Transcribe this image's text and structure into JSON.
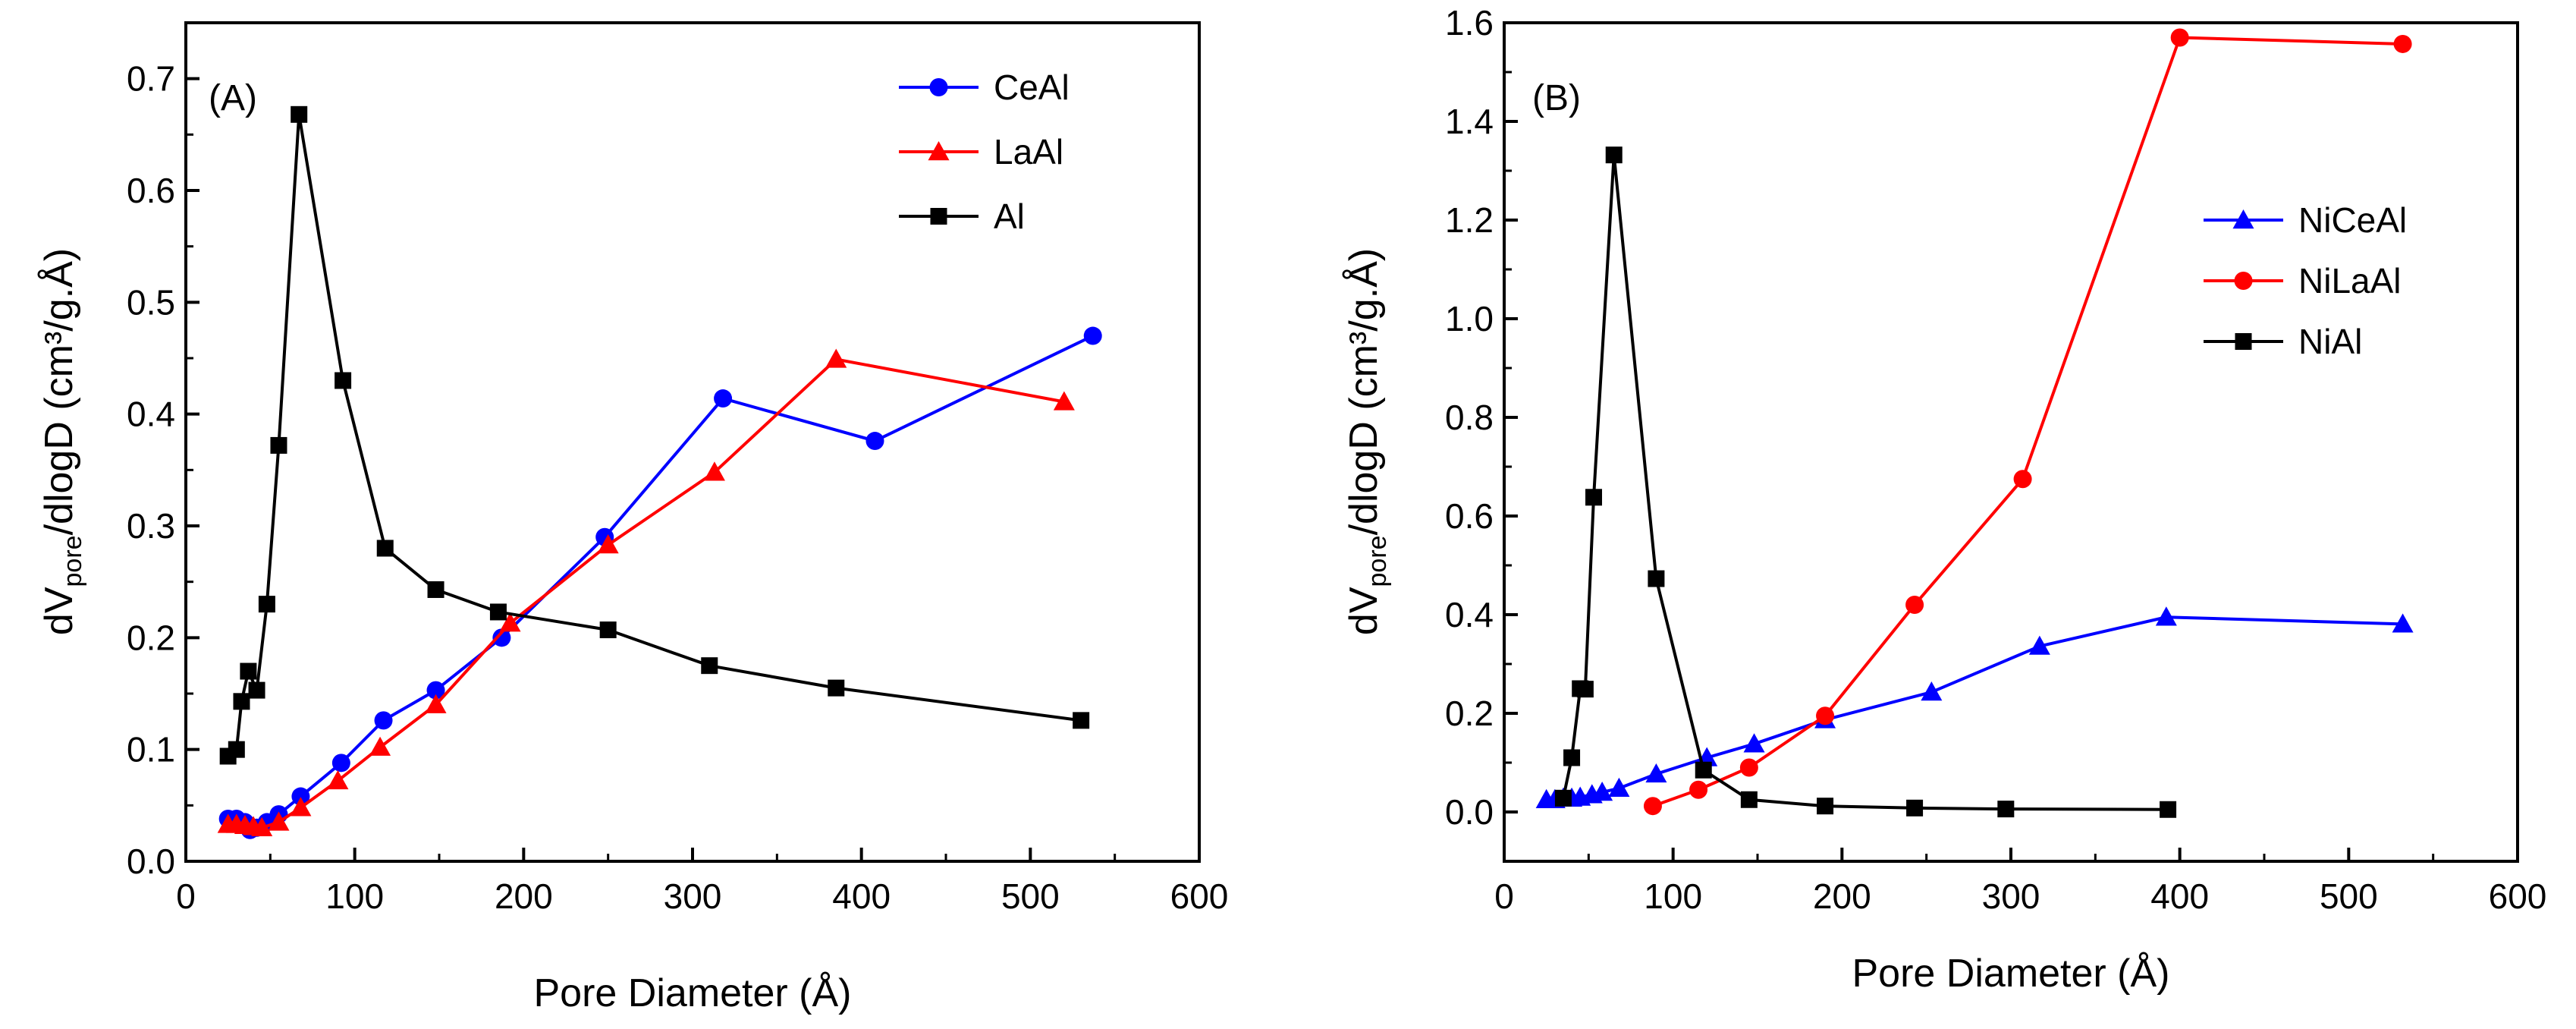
{
  "chart_data": [
    {
      "id": "A",
      "type": "line",
      "panel_label": "(A)",
      "xlabel": "Pore Diameter (Å)",
      "ylabel_main": "dV",
      "ylabel_sub": "pore",
      "ylabel_rest": "/dlogD (cm³/g.Å)",
      "xlim": [
        0,
        600
      ],
      "ylim": [
        0,
        0.75
      ],
      "xticks": [
        "0",
        "100",
        "200",
        "300",
        "400",
        "500",
        "600"
      ],
      "yticks": [
        "0.0",
        "0.1",
        "0.2",
        "0.3",
        "0.4",
        "0.5",
        "0.6",
        "0.7"
      ],
      "legend": "top-right",
      "series": [
        {
          "name": "CeAl",
          "color": "#0000ff",
          "marker": "circle",
          "x": [
            25,
            30,
            35,
            38,
            42,
            48,
            55,
            68,
            92,
            117,
            148,
            187,
            248,
            318,
            408,
            537
          ],
          "y": [
            0.038,
            0.038,
            0.035,
            0.028,
            0.03,
            0.035,
            0.042,
            0.058,
            0.088,
            0.126,
            0.153,
            0.2,
            0.29,
            0.414,
            0.376,
            0.47
          ]
        },
        {
          "name": "LaAl",
          "color": "#ff0000",
          "marker": "triangle",
          "x": [
            25,
            30,
            35,
            40,
            45,
            55,
            68,
            90,
            115,
            148,
            192,
            250,
            313,
            385,
            520
          ],
          "y": [
            0.033,
            0.033,
            0.032,
            0.031,
            0.03,
            0.035,
            0.048,
            0.072,
            0.102,
            0.14,
            0.213,
            0.283,
            0.348,
            0.449,
            0.411
          ]
        },
        {
          "name": "Al",
          "color": "#000000",
          "marker": "square",
          "x": [
            25,
            30,
            33,
            37,
            42,
            48,
            55,
            67,
            93,
            118,
            148,
            185,
            250,
            310,
            385,
            530
          ],
          "y": [
            0.094,
            0.1,
            0.143,
            0.17,
            0.153,
            0.23,
            0.372,
            0.668,
            0.43,
            0.28,
            0.243,
            0.223,
            0.207,
            0.175,
            0.155,
            0.126
          ]
        }
      ]
    },
    {
      "id": "B",
      "type": "line",
      "panel_label": "(B)",
      "xlabel": "Pore Diameter (Å)",
      "ylabel_main": "dV",
      "ylabel_sub": "pore",
      "ylabel_rest": "/dlogD (cm³/g.Å)",
      "xlim": [
        0,
        600
      ],
      "ylim": [
        -0.1,
        1.6
      ],
      "xticks": [
        "0",
        "100",
        "200",
        "300",
        "400",
        "500",
        "600"
      ],
      "yticks": [
        "0.0",
        "0.2",
        "0.4",
        "0.6",
        "0.8",
        "1.0",
        "1.2",
        "1.4",
        "1.6"
      ],
      "legend": "top-right",
      "series": [
        {
          "name": "NiCeAl",
          "color": "#0000ff",
          "marker": "triangle",
          "x": [
            25,
            30,
            35,
            40,
            45,
            52,
            58,
            68,
            90,
            120,
            148,
            190,
            253,
            317,
            392,
            532
          ],
          "y": [
            0.025,
            0.025,
            0.028,
            0.028,
            0.03,
            0.035,
            0.04,
            0.048,
            0.077,
            0.11,
            0.138,
            0.187,
            0.243,
            0.336,
            0.395,
            0.381
          ]
        },
        {
          "name": "NiLaAl",
          "color": "#ff0000",
          "marker": "circle",
          "x": [
            88,
            115,
            145,
            190,
            243,
            307,
            400,
            532
          ],
          "y": [
            0.012,
            0.045,
            0.09,
            0.195,
            0.42,
            0.675,
            1.57,
            1.557
          ]
        },
        {
          "name": "NiAl",
          "color": "#000000",
          "marker": "square",
          "x": [
            35,
            40,
            45,
            48,
            53,
            65,
            90,
            118,
            145,
            190,
            243,
            297,
            393
          ],
          "y": [
            0.028,
            0.11,
            0.25,
            0.249,
            0.638,
            1.332,
            0.473,
            0.085,
            0.025,
            0.012,
            0.008,
            0.006,
            0.005
          ]
        }
      ]
    }
  ]
}
